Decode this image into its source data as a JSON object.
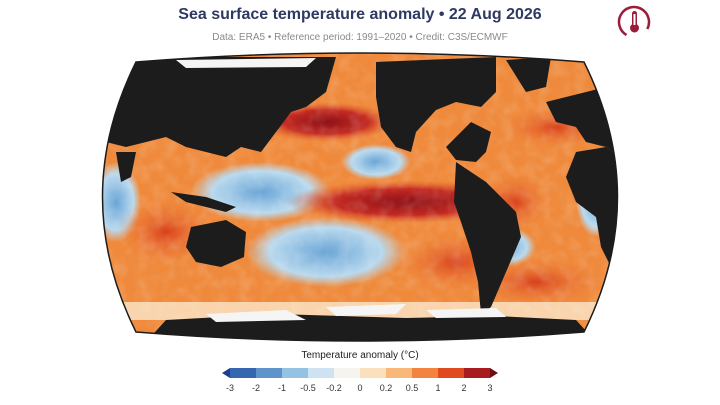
{
  "header": {
    "title": "Sea surface temperature anomaly • 22 Aug 2026",
    "subtitle": "Data: ERA5 • Reference period: 1991–2020 • Credit: C3S/ECMWF"
  },
  "logo": {
    "icon": "thermometer-globe-icon",
    "color": "#9b1d3a"
  },
  "map": {
    "projection": "Robinson",
    "land_color": "#1c1c1c",
    "ice_color": "#f7f7f7"
  },
  "legend": {
    "title": "Temperature anomaly (°C)",
    "ticks": [
      "-3",
      "-2",
      "-1",
      "-0.5",
      "-0.2",
      "0",
      "0.2",
      "0.5",
      "1",
      "2",
      "3"
    ],
    "colors": [
      "#1e3f8f",
      "#3566b0",
      "#5e93cb",
      "#94c2e2",
      "#cde3f1",
      "#f6f4ee",
      "#fbe0bd",
      "#f9b87a",
      "#f3843f",
      "#df4a1f",
      "#a81c1f",
      "#6e0d14"
    ]
  }
}
